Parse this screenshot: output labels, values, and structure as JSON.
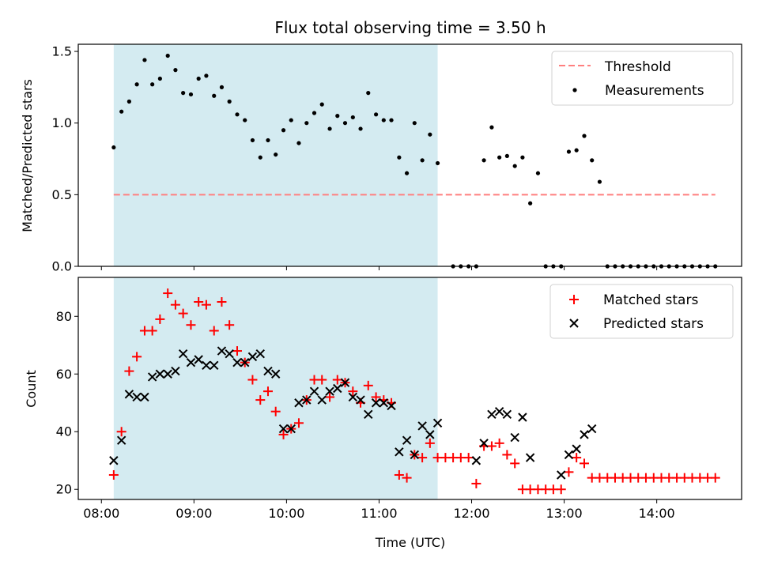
{
  "figure": {
    "title": "Flux total observing time = 3.50 h"
  },
  "chart_data": [
    {
      "type": "scatter",
      "title": "Flux total observing time = 3.50 h",
      "ylabel": "Matched/Predicted stars",
      "xlabel": "",
      "ylim": [
        0,
        1.55
      ],
      "yticks": [
        0.0,
        0.5,
        1.0,
        1.5
      ],
      "ytick_labels": [
        "0.0",
        "0.5",
        "1.0",
        "1.5"
      ],
      "x_unit": "hours UTC",
      "shaded_region": {
        "x_start": 8.133,
        "x_end": 11.633,
        "color": "#d4ebf1"
      },
      "legend": {
        "placement": "upper-right",
        "entries": [
          "Threshold",
          "Measurements"
        ]
      },
      "series": [
        {
          "name": "Threshold",
          "kind": "dashed-line",
          "color": "#ff7f7f",
          "x": [
            8.133,
            14.633
          ],
          "y": [
            0.5,
            0.5
          ]
        },
        {
          "name": "Measurements",
          "kind": "points",
          "color": "#000000",
          "x": [
            8.133,
            8.217,
            8.3,
            8.383,
            8.467,
            8.55,
            8.633,
            8.717,
            8.8,
            8.883,
            8.967,
            9.05,
            9.133,
            9.217,
            9.3,
            9.383,
            9.467,
            9.55,
            9.633,
            9.717,
            9.8,
            9.883,
            9.967,
            10.05,
            10.133,
            10.217,
            10.3,
            10.383,
            10.467,
            10.55,
            10.633,
            10.717,
            10.8,
            10.883,
            10.967,
            11.05,
            11.133,
            11.217,
            11.3,
            11.383,
            11.467,
            11.55,
            11.633,
            11.8,
            11.883,
            11.967,
            12.05,
            12.133,
            12.217,
            12.3,
            12.383,
            12.467,
            12.55,
            12.633,
            12.717,
            12.8,
            12.883,
            12.967,
            13.05,
            13.133,
            13.217,
            13.3,
            13.383,
            13.467,
            13.55,
            13.633,
            13.717,
            13.8,
            13.883,
            13.967,
            14.05,
            14.133,
            14.217,
            14.3,
            14.383,
            14.467,
            14.55,
            14.633
          ],
          "y": [
            0.83,
            1.08,
            1.15,
            1.27,
            1.44,
            1.27,
            1.31,
            1.47,
            1.37,
            1.21,
            1.2,
            1.31,
            1.33,
            1.19,
            1.25,
            1.15,
            1.06,
            1.02,
            0.88,
            0.76,
            0.88,
            0.78,
            0.95,
            1.02,
            0.86,
            1.0,
            1.07,
            1.13,
            0.96,
            1.05,
            1.0,
            1.04,
            0.96,
            1.21,
            1.06,
            1.02,
            1.02,
            0.76,
            0.65,
            1.0,
            0.74,
            0.92,
            0.72,
            0.0,
            0.0,
            0.0,
            0.0,
            0.74,
            0.97,
            0.76,
            0.77,
            0.7,
            0.76,
            0.44,
            0.65,
            0.0,
            0.0,
            0.0,
            0.8,
            0.81,
            0.91,
            0.74,
            0.59,
            0.0,
            0.0,
            0.0,
            0.0,
            0.0,
            0.0,
            0.0,
            0.0,
            0.0,
            0.0,
            0.0,
            0.0,
            0.0,
            0.0,
            0.0
          ]
        }
      ]
    },
    {
      "type": "scatter",
      "title": "",
      "ylabel": "Count",
      "xlabel": "Time (UTC)",
      "ylim": [
        16.5,
        93.5
      ],
      "yticks": [
        20,
        40,
        60,
        80
      ],
      "ytick_labels": [
        "20",
        "40",
        "60",
        "80"
      ],
      "x_unit": "hours UTC",
      "xlim": [
        7.75,
        14.917
      ],
      "xticks": [
        8,
        9,
        10,
        11,
        12,
        13,
        14
      ],
      "xtick_labels": [
        "08:00",
        "09:00",
        "10:00",
        "11:00",
        "12:00",
        "13:00",
        "14:00"
      ],
      "shaded_region": {
        "x_start": 8.133,
        "x_end": 11.633,
        "color": "#d4ebf1"
      },
      "legend": {
        "placement": "upper-right",
        "entries": [
          "Matched stars",
          "Predicted stars"
        ]
      },
      "series": [
        {
          "name": "Matched stars",
          "marker": "plus",
          "color": "#ff0000",
          "x": [
            8.133,
            8.217,
            8.3,
            8.383,
            8.467,
            8.55,
            8.633,
            8.717,
            8.8,
            8.883,
            8.967,
            9.05,
            9.133,
            9.217,
            9.3,
            9.383,
            9.467,
            9.55,
            9.633,
            9.717,
            9.8,
            9.883,
            9.967,
            10.05,
            10.133,
            10.217,
            10.3,
            10.383,
            10.467,
            10.55,
            10.633,
            10.717,
            10.8,
            10.883,
            10.967,
            11.05,
            11.133,
            11.217,
            11.3,
            11.383,
            11.467,
            11.55,
            11.633,
            11.717,
            11.8,
            11.883,
            11.967,
            12.05,
            12.133,
            12.217,
            12.3,
            12.383,
            12.467,
            12.55,
            12.633,
            12.717,
            12.8,
            12.883,
            12.967,
            13.05,
            13.133,
            13.217,
            13.3,
            13.383,
            13.467,
            13.55,
            13.633,
            13.717,
            13.8,
            13.883,
            13.967,
            14.05,
            14.133,
            14.217,
            14.3,
            14.383,
            14.467,
            14.55,
            14.633
          ],
          "y": [
            25,
            40,
            61,
            66,
            75,
            75,
            79,
            88,
            84,
            81,
            77,
            85,
            84,
            75,
            85,
            77,
            68,
            64,
            58,
            51,
            54,
            47,
            39,
            41,
            43,
            51,
            58,
            58,
            52,
            58,
            57,
            54,
            50,
            56,
            52,
            51,
            50,
            25,
            24,
            32,
            31,
            36,
            31,
            31,
            31,
            31,
            31,
            22,
            35,
            35,
            36,
            32,
            29,
            20,
            20,
            20,
            20,
            20,
            20,
            26,
            31,
            29,
            24,
            24,
            24,
            24,
            24,
            24,
            24,
            24,
            24,
            24,
            24,
            24,
            24,
            24,
            24,
            24,
            24
          ]
        },
        {
          "name": "Predicted stars",
          "marker": "x",
          "color": "#000000",
          "x": [
            8.133,
            8.217,
            8.3,
            8.383,
            8.467,
            8.55,
            8.633,
            8.717,
            8.8,
            8.883,
            8.967,
            9.05,
            9.133,
            9.217,
            9.3,
            9.383,
            9.467,
            9.55,
            9.633,
            9.717,
            9.8,
            9.883,
            9.967,
            10.05,
            10.133,
            10.217,
            10.3,
            10.383,
            10.467,
            10.55,
            10.633,
            10.717,
            10.8,
            10.883,
            10.967,
            11.05,
            11.133,
            11.217,
            11.3,
            11.383,
            11.467,
            11.55,
            11.633,
            12.05,
            12.133,
            12.217,
            12.3,
            12.383,
            12.467,
            12.55,
            12.633,
            12.967,
            13.05,
            13.133,
            13.217,
            13.3
          ],
          "y": [
            30,
            37,
            53,
            52,
            52,
            59,
            60,
            60,
            61,
            67,
            64,
            65,
            63,
            63,
            68,
            67,
            64,
            64,
            66,
            67,
            61,
            60,
            41,
            41,
            50,
            51,
            54,
            51,
            54,
            55,
            57,
            52,
            51,
            46,
            50,
            50,
            49,
            33,
            37,
            32,
            42,
            39,
            43,
            30,
            36,
            46,
            47,
            46,
            38,
            45,
            31,
            25,
            32,
            34,
            39,
            41
          ]
        }
      ]
    }
  ]
}
